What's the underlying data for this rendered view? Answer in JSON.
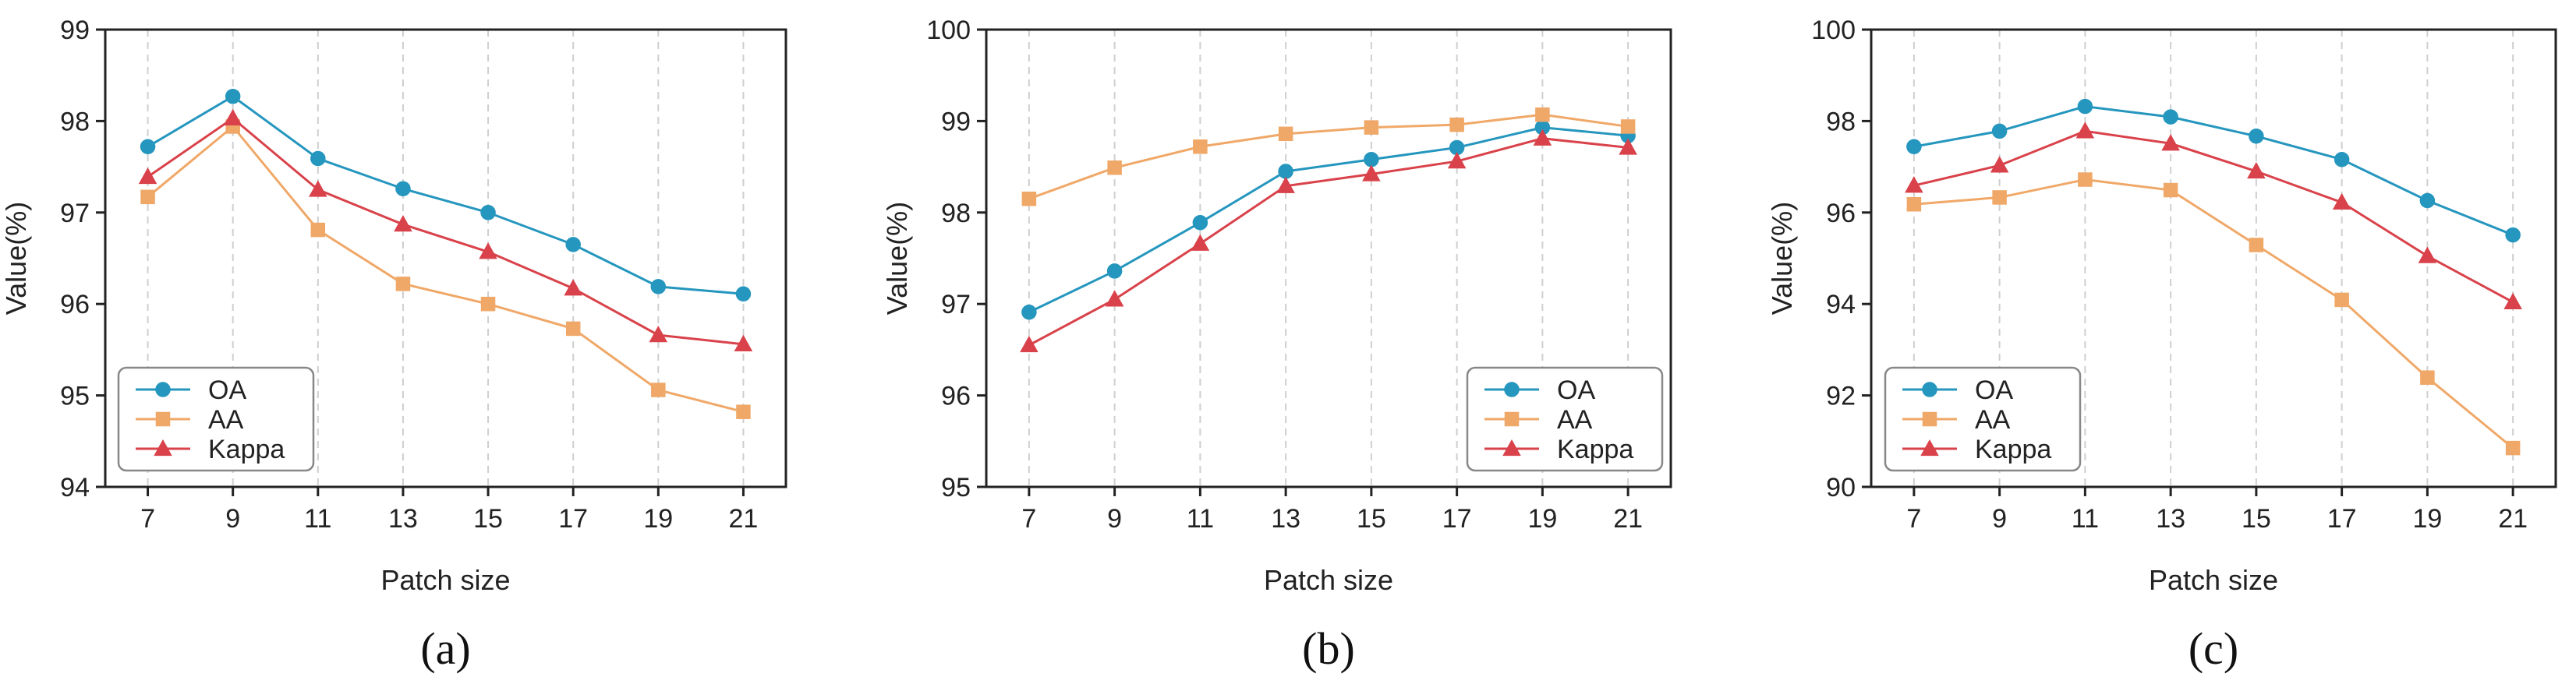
{
  "chart_data": [
    {
      "type": "line",
      "caption": "(a)",
      "xlabel": "Patch size",
      "ylabel": "Value(%)",
      "categories": [
        "7",
        "9",
        "11",
        "13",
        "15",
        "17",
        "19",
        "21"
      ],
      "ylim": [
        94,
        99
      ],
      "yticks": [
        94,
        95,
        96,
        97,
        98,
        99
      ],
      "grid": "vertical-dashed",
      "legend_position": "bottom-left",
      "series": [
        {
          "name": "OA",
          "marker": "circle",
          "color": "#2596be",
          "values": [
            97.72,
            98.27,
            97.59,
            97.26,
            97.0,
            96.65,
            96.19,
            96.11
          ]
        },
        {
          "name": "AA",
          "marker": "square",
          "color": "#f0a868",
          "values": [
            97.17,
            97.94,
            96.81,
            96.22,
            96.0,
            95.73,
            95.06,
            94.82
          ]
        },
        {
          "name": "Kappa",
          "marker": "triangle",
          "color": "#d9424a",
          "values": [
            97.39,
            98.03,
            97.25,
            96.87,
            96.57,
            96.17,
            95.66,
            95.56
          ]
        }
      ]
    },
    {
      "type": "line",
      "caption": "(b)",
      "xlabel": "Patch size",
      "ylabel": "Value(%)",
      "categories": [
        "7",
        "9",
        "11",
        "13",
        "15",
        "17",
        "19",
        "21"
      ],
      "ylim": [
        95,
        100
      ],
      "yticks": [
        95,
        96,
        97,
        98,
        99,
        100
      ],
      "grid": "vertical-dashed",
      "legend_position": "bottom-right",
      "series": [
        {
          "name": "OA",
          "marker": "circle",
          "color": "#2596be",
          "values": [
            96.91,
            97.36,
            97.89,
            98.45,
            98.58,
            98.71,
            98.93,
            98.84
          ]
        },
        {
          "name": "AA",
          "marker": "square",
          "color": "#f0a868",
          "values": [
            98.15,
            98.49,
            98.72,
            98.86,
            98.93,
            98.96,
            99.07,
            98.94
          ]
        },
        {
          "name": "Kappa",
          "marker": "triangle",
          "color": "#d9424a",
          "values": [
            96.55,
            97.05,
            97.66,
            98.29,
            98.42,
            98.56,
            98.81,
            98.71
          ]
        }
      ]
    },
    {
      "type": "line",
      "caption": "(c)",
      "xlabel": "Patch size",
      "ylabel": "Value(%)",
      "categories": [
        "7",
        "9",
        "11",
        "13",
        "15",
        "17",
        "19",
        "21"
      ],
      "ylim": [
        90,
        100
      ],
      "yticks": [
        90,
        92,
        94,
        96,
        98,
        100
      ],
      "grid": "vertical-dashed",
      "legend_position": "bottom-left",
      "series": [
        {
          "name": "OA",
          "marker": "circle",
          "color": "#2596be",
          "values": [
            97.44,
            97.78,
            98.32,
            98.09,
            97.67,
            97.16,
            96.26,
            95.51
          ]
        },
        {
          "name": "AA",
          "marker": "square",
          "color": "#f0a868",
          "values": [
            96.18,
            96.33,
            96.72,
            96.49,
            95.29,
            94.09,
            92.39,
            90.85
          ]
        },
        {
          "name": "Kappa",
          "marker": "triangle",
          "color": "#d9424a",
          "values": [
            96.59,
            97.03,
            97.78,
            97.51,
            96.9,
            96.22,
            95.05,
            94.04
          ]
        }
      ]
    }
  ]
}
